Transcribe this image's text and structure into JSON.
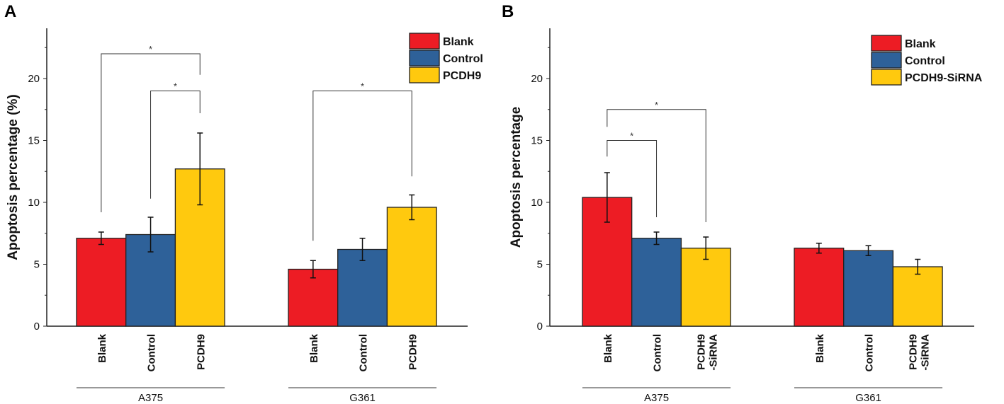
{
  "colors": {
    "Blank": "#ed1c24",
    "Control": "#2e6199",
    "Treatment": "#ffc90e"
  },
  "chart_data": [
    {
      "panel": "A",
      "type": "bar",
      "ylabel": "Apoptosis percentage (%)",
      "ylim": [
        0,
        24
      ],
      "yticks": [
        0,
        5,
        10,
        15,
        20
      ],
      "groups": [
        "A375",
        "G361"
      ],
      "categories": [
        "Blank",
        "Control",
        "PCDH9"
      ],
      "legend": [
        "Blank",
        "Control",
        "PCDH9"
      ],
      "legend_position": "top-right",
      "series": [
        {
          "name": "A375",
          "values": [
            7.1,
            7.4,
            12.7
          ],
          "errors": [
            0.5,
            1.4,
            2.9
          ]
        },
        {
          "name": "G361",
          "values": [
            4.6,
            6.2,
            9.6
          ],
          "errors": [
            0.7,
            0.9,
            1.0
          ]
        }
      ],
      "significance": [
        {
          "group": 0,
          "from": 0,
          "to": 2,
          "level": 22,
          "from_end": 9.2,
          "to_end": 20.3,
          "label": "*"
        },
        {
          "group": 0,
          "from": 1,
          "to": 2,
          "level": 19,
          "from_end": 10.3,
          "to_end": 17.2,
          "label": "*"
        },
        {
          "group": 1,
          "from": 0,
          "to": 2,
          "level": 19,
          "from_end": 6.9,
          "to_end": 12.1,
          "label": "*"
        }
      ]
    },
    {
      "panel": "B",
      "type": "bar",
      "ylabel": "Apoptosis percentage",
      "ylim": [
        0,
        24
      ],
      "yticks": [
        0,
        5,
        10,
        15,
        20
      ],
      "groups": [
        "A375",
        "G361"
      ],
      "categories": [
        "Blank",
        "Control",
        "PCDH9\n-SiRNA"
      ],
      "legend": [
        "Blank",
        "Control",
        "PCDH9-SiRNA"
      ],
      "legend_position": "top-right",
      "series": [
        {
          "name": "A375",
          "values": [
            10.4,
            7.1,
            6.3
          ],
          "errors": [
            2.0,
            0.5,
            0.9
          ]
        },
        {
          "name": "G361",
          "values": [
            6.3,
            6.1,
            4.8
          ],
          "errors": [
            0.4,
            0.4,
            0.6
          ]
        }
      ],
      "significance": [
        {
          "group": 0,
          "from": 0,
          "to": 2,
          "level": 17.5,
          "from_end": 16.1,
          "to_end": 8.4,
          "label": "*"
        },
        {
          "group": 0,
          "from": 0,
          "to": 1,
          "level": 15,
          "from_end": 13.7,
          "to_end": 8.8,
          "label": "*"
        }
      ]
    }
  ]
}
